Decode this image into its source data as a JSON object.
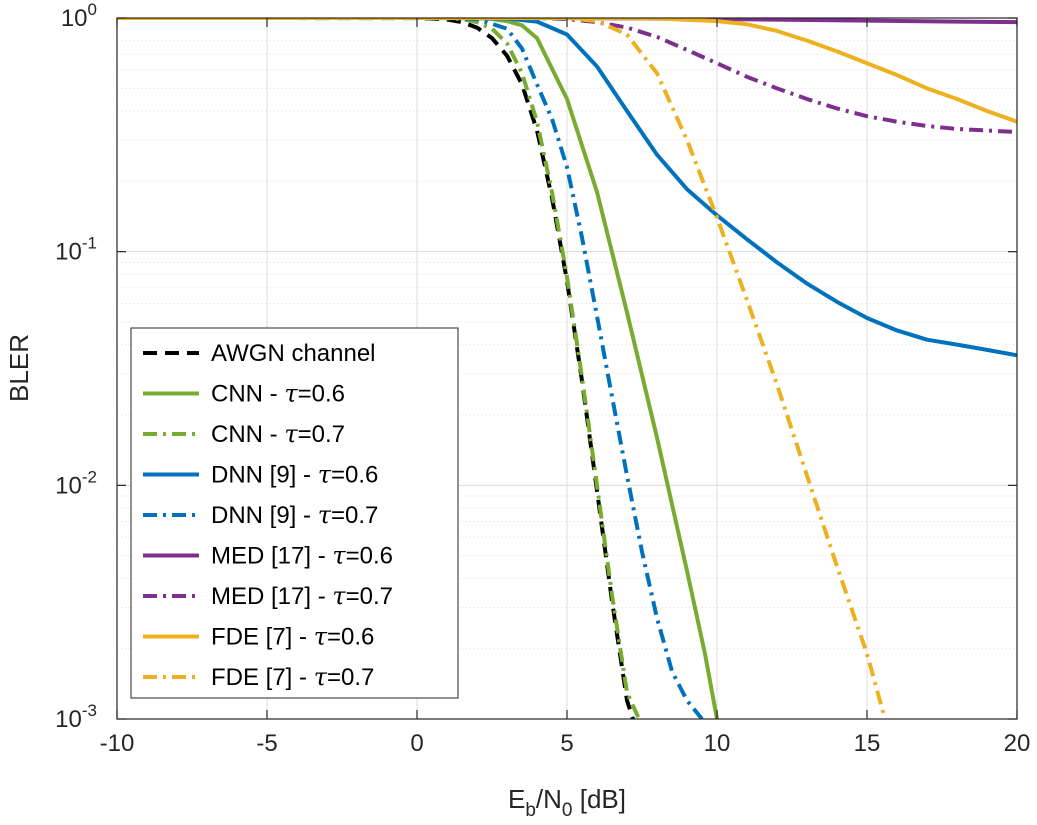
{
  "chart_data": {
    "type": "line",
    "title": "",
    "xlabel": "E_b/N_0 [dB]",
    "xlabel_parts": {
      "main": "E",
      "sub1": "b",
      "mid": "/N",
      "sub2": "0",
      "tail": " [dB]"
    },
    "ylabel": "BLER",
    "xlim": [
      -10,
      20
    ],
    "ylim": [
      0.001,
      1
    ],
    "yscale": "log",
    "grid": true,
    "x_ticks": [
      {
        "value": -10,
        "label": "-10"
      },
      {
        "value": -5,
        "label": "-5"
      },
      {
        "value": 0,
        "label": "0"
      },
      {
        "value": 5,
        "label": "5"
      },
      {
        "value": 10,
        "label": "10"
      },
      {
        "value": 15,
        "label": "15"
      },
      {
        "value": 20,
        "label": "20"
      }
    ],
    "y_ticks": [
      {
        "value": 1,
        "base": "10",
        "exp": "0"
      },
      {
        "value": 0.1,
        "base": "10",
        "exp": "-1"
      },
      {
        "value": 0.01,
        "base": "10",
        "exp": "-2"
      },
      {
        "value": 0.001,
        "base": "10",
        "exp": "-3"
      }
    ],
    "legend_position": "bottom-left",
    "series": [
      {
        "name": "AWGN channel",
        "legend_main": "AWGN channel",
        "legend_tau": "",
        "color": "#000000",
        "style": "dashed",
        "x": [
          -10,
          0,
          0.5,
          1,
          1.5,
          2,
          2.5,
          3,
          3.5,
          4,
          4.5,
          5,
          5.5,
          6,
          6.5,
          7,
          7.2
        ],
        "y": [
          1,
          0.999,
          0.995,
          0.985,
          0.96,
          0.91,
          0.82,
          0.69,
          0.52,
          0.33,
          0.17,
          0.075,
          0.028,
          0.0095,
          0.0032,
          0.0012,
          0.001
        ]
      },
      {
        "name": "CNN - τ=0.6",
        "legend_main": "CNN - ",
        "legend_tau": "=0.6",
        "color": "#77AC30",
        "style": "solid",
        "x": [
          -10,
          0,
          1,
          2,
          2.5,
          3,
          3.5,
          4,
          5,
          6,
          7,
          8,
          9,
          9.6,
          10
        ],
        "y": [
          1,
          1,
          1,
          0.998,
          0.99,
          0.97,
          0.93,
          0.82,
          0.45,
          0.18,
          0.055,
          0.016,
          0.0043,
          0.0019,
          0.001
        ]
      },
      {
        "name": "CNN - τ=0.7",
        "legend_main": "CNN - ",
        "legend_tau": "=0.7",
        "color": "#77AC30",
        "style": "dashdot",
        "x": [
          -10,
          0,
          1,
          1.5,
          2,
          2.5,
          3,
          3.5,
          4,
          4.5,
          5,
          5.5,
          6,
          6.5,
          7,
          7.4
        ],
        "y": [
          1,
          1,
          0.998,
          0.99,
          0.96,
          0.9,
          0.78,
          0.58,
          0.36,
          0.18,
          0.078,
          0.029,
          0.01,
          0.0034,
          0.0013,
          0.001
        ]
      },
      {
        "name": "DNN [9] - τ=0.6",
        "legend_main": "DNN [9] - ",
        "legend_tau": "=0.6",
        "color": "#0072BD",
        "style": "solid",
        "x": [
          -10,
          0,
          2,
          3,
          4,
          5,
          6,
          7,
          8,
          9,
          10,
          11,
          12,
          13,
          14,
          15,
          16,
          17,
          18,
          19,
          20
        ],
        "y": [
          1,
          1,
          1,
          0.995,
          0.965,
          0.85,
          0.62,
          0.4,
          0.26,
          0.185,
          0.143,
          0.113,
          0.09,
          0.073,
          0.061,
          0.052,
          0.046,
          0.042,
          0.04,
          0.038,
          0.036
        ]
      },
      {
        "name": "DNN [9] - τ=0.7",
        "legend_main": "DNN [9] - ",
        "legend_tau": "=0.7",
        "color": "#0072BD",
        "style": "dashdot",
        "x": [
          -10,
          0,
          1,
          2,
          3,
          3.5,
          4,
          4.5,
          5,
          5.5,
          6,
          6.5,
          7,
          7.5,
          8,
          8.5,
          9,
          9.5
        ],
        "y": [
          1,
          1,
          1,
          0.99,
          0.9,
          0.74,
          0.52,
          0.37,
          0.23,
          0.115,
          0.053,
          0.024,
          0.011,
          0.0052,
          0.0027,
          0.0016,
          0.0012,
          0.001
        ]
      },
      {
        "name": "MED [17] - τ=0.6",
        "legend_main": "MED [17] - ",
        "legend_tau": "=0.6",
        "color": "#7E2F8E",
        "style": "solid",
        "x": [
          -10,
          0,
          5,
          10,
          15,
          18,
          20
        ],
        "y": [
          1,
          1,
          0.999,
          0.99,
          0.975,
          0.965,
          0.96
        ]
      },
      {
        "name": "MED [17] - τ=0.7",
        "legend_main": "MED [17] - ",
        "legend_tau": "=0.7",
        "color": "#7E2F8E",
        "style": "dashdot",
        "x": [
          -10,
          0,
          4,
          5,
          6,
          7,
          8,
          9,
          10,
          11,
          12,
          13,
          14,
          15,
          16,
          17,
          18,
          19,
          20
        ],
        "y": [
          1,
          1,
          0.999,
          0.99,
          0.96,
          0.91,
          0.83,
          0.73,
          0.64,
          0.56,
          0.5,
          0.45,
          0.41,
          0.38,
          0.36,
          0.345,
          0.335,
          0.33,
          0.325
        ]
      },
      {
        "name": "FDE [7] - τ=0.6",
        "legend_main": "FDE [7] - ",
        "legend_tau": "=0.6",
        "color": "#EDB120",
        "style": "solid",
        "x": [
          -10,
          0,
          5,
          8,
          10,
          11,
          12,
          13,
          14,
          15,
          16,
          17,
          18,
          19,
          20
        ],
        "y": [
          1,
          1,
          1,
          0.995,
          0.97,
          0.94,
          0.88,
          0.8,
          0.72,
          0.64,
          0.57,
          0.5,
          0.45,
          0.4,
          0.36
        ]
      },
      {
        "name": "FDE [7] - τ=0.7",
        "legend_main": "FDE [7] - ",
        "legend_tau": "=0.7",
        "color": "#EDB120",
        "style": "dashdot",
        "x": [
          -10,
          0,
          5,
          6,
          7,
          8,
          9,
          10,
          11,
          12,
          13,
          14,
          15,
          15.6
        ],
        "y": [
          1,
          1,
          0.999,
          0.97,
          0.85,
          0.58,
          0.3,
          0.14,
          0.062,
          0.027,
          0.011,
          0.0045,
          0.0019,
          0.001
        ]
      }
    ]
  }
}
